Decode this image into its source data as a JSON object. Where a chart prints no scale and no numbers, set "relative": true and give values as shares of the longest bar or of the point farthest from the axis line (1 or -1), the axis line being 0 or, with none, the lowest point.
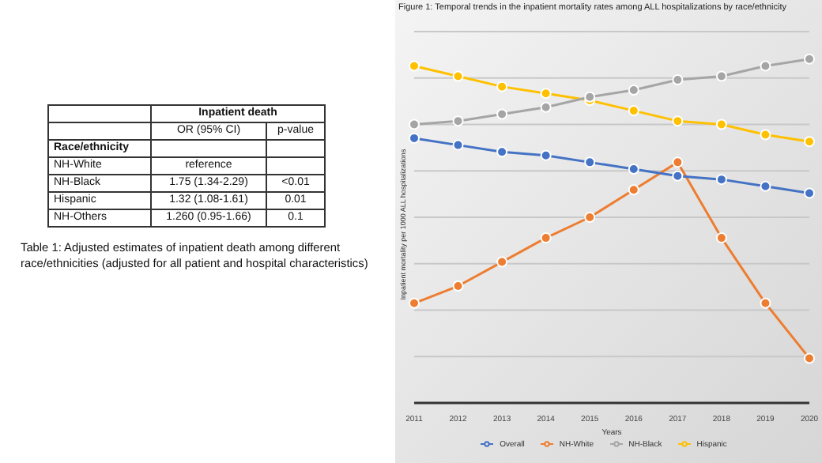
{
  "chart_data": [
    {
      "type": "other",
      "annotations": [
        "Inpatient death",
        "OR (95% CI)",
        "p-value",
        "Race/ethnicity",
        "NH-White",
        "reference",
        "NH-Black",
        "1.75 (1.34-2.29)",
        "<0.01",
        "Hispanic",
        "1.32 (1.08-1.61)",
        "0.01",
        "NH-Others",
        "1.260 (0.95-1.66)",
        "0.1",
        "Table 1: Adjusted estimates of inpatient death among different race/ethnicities (adjusted for all patient and hospital characteristics)"
      ]
    },
    {
      "type": "line",
      "title": "Figure 1: Temporal trends in the inpatient mortality rates among ALL hospitalizations by race/ethnicity",
      "xlabel": "Years",
      "ylabel": "Inpatient mortality per 1000 ALL hospitalizations",
      "categories": [
        "2011",
        "2012",
        "2013",
        "2014",
        "2015",
        "2016",
        "2017",
        "2018",
        "2019",
        "2020"
      ],
      "relative": true,
      "grid": "y",
      "legend": "bottom",
      "marker": "circle",
      "series": [
        {
          "name": "Overall",
          "color": "#4472c4",
          "values": [
            0.77,
            0.75,
            0.73,
            0.72,
            0.7,
            0.68,
            0.66,
            0.65,
            0.63,
            0.61
          ]
        },
        {
          "name": "NH-White",
          "color": "#ed7d31",
          "values": [
            0.29,
            0.34,
            0.41,
            0.48,
            0.54,
            0.62,
            0.7,
            0.48,
            0.29,
            0.13
          ]
        },
        {
          "name": "NH-Black",
          "color": "#a5a5a5",
          "values": [
            0.81,
            0.82,
            0.84,
            0.86,
            0.89,
            0.91,
            0.94,
            0.95,
            0.98,
            1
          ]
        },
        {
          "name": "Hispanic",
          "color": "#ffc000",
          "values": [
            0.98,
            0.95,
            0.92,
            0.9,
            0.88,
            0.85,
            0.82,
            0.81,
            0.78,
            0.76
          ]
        }
      ]
    }
  ]
}
